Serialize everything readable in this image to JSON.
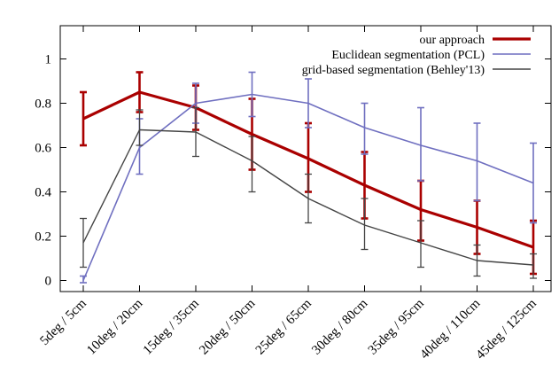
{
  "chart_data": {
    "type": "line",
    "title": "",
    "xlabel": "",
    "ylabel": "",
    "ylim": [
      -0.05,
      1.15
    ],
    "yticks": [
      0,
      0.2,
      0.4,
      0.6,
      0.8,
      1
    ],
    "ytick_labels": [
      "0",
      "0.2",
      "0.4",
      "0.6",
      "0.8",
      "1"
    ],
    "grid": false,
    "legend_position": "top-right",
    "categories": [
      "5deg / 5cm",
      "10deg / 20cm",
      "15deg / 35cm",
      "20deg / 50cm",
      "25deg / 65cm",
      "30deg / 80cm",
      "35deg / 95cm",
      "40deg / 110cm",
      "45deg / 125cm"
    ],
    "series": [
      {
        "name": "our approach",
        "color": "#aa0000",
        "values": [
          0.73,
          0.85,
          0.78,
          0.66,
          0.55,
          0.43,
          0.32,
          0.24,
          0.15
        ],
        "err_low": [
          0.61,
          0.76,
          0.68,
          0.5,
          0.4,
          0.28,
          0.18,
          0.12,
          0.03
        ],
        "err_high": [
          0.85,
          0.94,
          0.88,
          0.82,
          0.71,
          0.58,
          0.45,
          0.36,
          0.27
        ]
      },
      {
        "name": "Euclidean segmentation (PCL)",
        "color": "#6f6fc0",
        "values": [
          0.0,
          0.6,
          0.8,
          0.84,
          0.8,
          0.69,
          0.61,
          0.54,
          0.44
        ],
        "err_low": [
          -0.01,
          0.48,
          0.71,
          0.74,
          0.69,
          0.57,
          0.45,
          0.36,
          0.26
        ],
        "err_high": [
          0.02,
          0.73,
          0.89,
          0.94,
          0.91,
          0.8,
          0.78,
          0.71,
          0.62
        ]
      },
      {
        "name": "grid-based segmentation (Behley'13)",
        "color": "#444444",
        "values": [
          0.17,
          0.68,
          0.67,
          0.54,
          0.37,
          0.25,
          0.17,
          0.09,
          0.07
        ],
        "err_low": [
          0.06,
          0.61,
          0.56,
          0.4,
          0.26,
          0.14,
          0.06,
          0.02,
          0.01
        ],
        "err_high": [
          0.28,
          0.77,
          0.78,
          0.65,
          0.48,
          0.37,
          0.27,
          0.16,
          0.12
        ]
      }
    ]
  }
}
